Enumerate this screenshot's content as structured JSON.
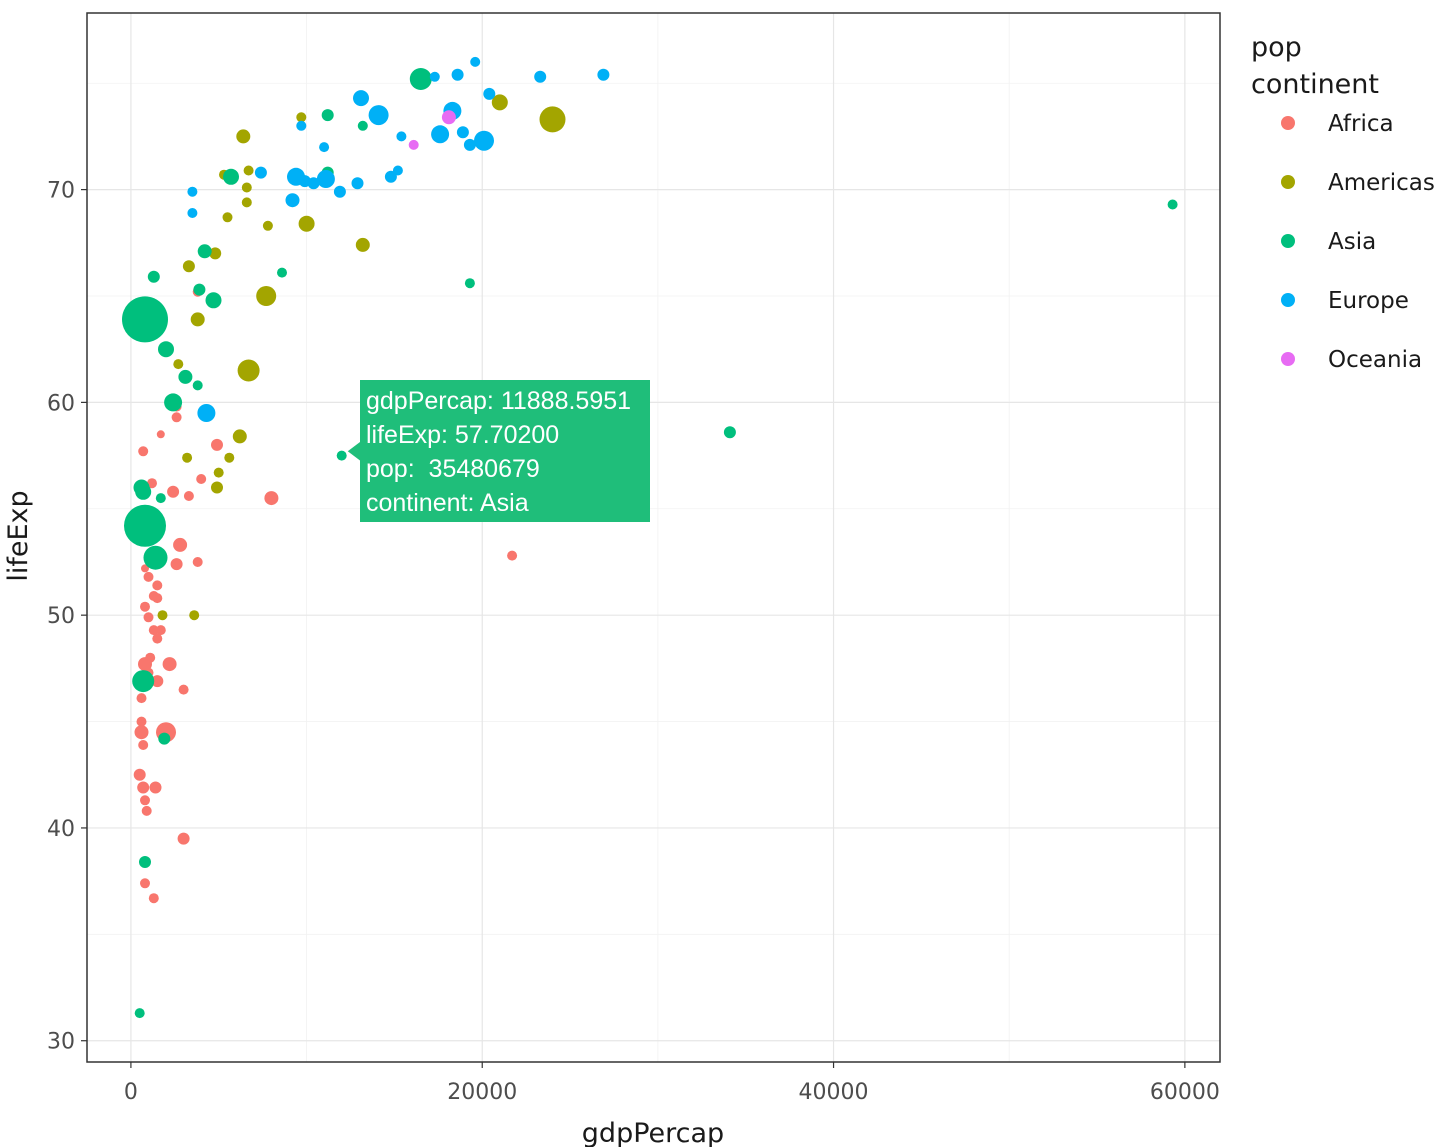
{
  "chart_data": {
    "type": "scatter",
    "xlabel": "gdpPercap",
    "ylabel": "lifeExp",
    "xlim": [
      -2500,
      62000
    ],
    "ylim": [
      29,
      78.3
    ],
    "x_ticks": [
      0,
      20000,
      40000,
      60000
    ],
    "y_ticks": [
      30,
      40,
      50,
      60,
      70
    ],
    "x_tick_labels": [
      "0",
      "20000",
      "40000",
      "60000"
    ],
    "y_tick_labels": [
      "30",
      "40",
      "50",
      "60",
      "70"
    ],
    "grid": true,
    "size_variable": "pop",
    "color_variable": "continent",
    "legend": {
      "placement": "right",
      "titles": [
        "pop",
        "continent"
      ],
      "entries": [
        {
          "label": "Africa",
          "color": "#f8766d"
        },
        {
          "label": "Americas",
          "color": "#a3a500"
        },
        {
          "label": "Asia",
          "color": "#00bf7d"
        },
        {
          "label": "Europe",
          "color": "#00b0f6"
        },
        {
          "label": "Oceania",
          "color": "#e76bf3"
        }
      ]
    },
    "tooltip": {
      "lines": [
        "gdpPercap: 11888.5951",
        "lifeExp: 57.70200",
        "pop:  35480679",
        "continent: Asia"
      ],
      "x": 11888.5951,
      "y": 57.702,
      "color": "#1fbe7a"
    },
    "series": [
      {
        "name": "Africa",
        "color": "#f8766d",
        "points": [
          [
            2600,
            59.8,
            5
          ],
          [
            2600,
            59.3,
            5
          ],
          [
            1700,
            58.5,
            4
          ],
          [
            700,
            57.7,
            5
          ],
          [
            4900,
            58.0,
            6
          ],
          [
            1200,
            56.2,
            5
          ],
          [
            2400,
            55.8,
            6
          ],
          [
            3300,
            55.6,
            5
          ],
          [
            4000,
            56.4,
            5
          ],
          [
            8000,
            55.5,
            7
          ],
          [
            2800,
            53.3,
            7
          ],
          [
            2600,
            52.4,
            6
          ],
          [
            3800,
            52.5,
            5
          ],
          [
            800,
            52.2,
            4
          ],
          [
            1000,
            51.8,
            5
          ],
          [
            1500,
            51.4,
            5
          ],
          [
            1300,
            50.9,
            5
          ],
          [
            1500,
            50.8,
            5
          ],
          [
            800,
            50.4,
            5
          ],
          [
            1000,
            49.9,
            5
          ],
          [
            1300,
            49.3,
            5
          ],
          [
            1700,
            49.3,
            5
          ],
          [
            1500,
            48.9,
            5
          ],
          [
            1100,
            48.0,
            5
          ],
          [
            800,
            47.7,
            7
          ],
          [
            2200,
            47.7,
            7
          ],
          [
            1000,
            47.3,
            5
          ],
          [
            1500,
            46.9,
            6
          ],
          [
            600,
            46.1,
            5
          ],
          [
            3000,
            46.5,
            5
          ],
          [
            600,
            45.0,
            5
          ],
          [
            600,
            44.5,
            7
          ],
          [
            2000,
            44.5,
            10
          ],
          [
            700,
            43.9,
            5
          ],
          [
            500,
            42.5,
            6
          ],
          [
            700,
            41.9,
            6
          ],
          [
            1400,
            41.9,
            6
          ],
          [
            800,
            41.3,
            5
          ],
          [
            900,
            40.8,
            5
          ],
          [
            3000,
            39.5,
            6
          ],
          [
            800,
            37.4,
            5
          ],
          [
            1300,
            36.7,
            5
          ],
          [
            21700,
            52.8,
            5
          ],
          [
            3800,
            65.2,
            5
          ]
        ]
      },
      {
        "name": "Americas",
        "color": "#a3a500",
        "points": [
          [
            24000,
            73.3,
            13
          ],
          [
            21000,
            74.1,
            8
          ],
          [
            9700,
            73.4,
            5
          ],
          [
            6400,
            72.5,
            7
          ],
          [
            6700,
            70.9,
            5
          ],
          [
            5300,
            70.7,
            5
          ],
          [
            6600,
            70.1,
            5
          ],
          [
            6600,
            69.4,
            5
          ],
          [
            5500,
            68.7,
            5
          ],
          [
            7800,
            68.3,
            5
          ],
          [
            10000,
            68.4,
            8
          ],
          [
            13200,
            67.4,
            7
          ],
          [
            4800,
            67.0,
            6
          ],
          [
            3300,
            66.4,
            6
          ],
          [
            7700,
            65.0,
            10
          ],
          [
            3800,
            63.9,
            7
          ],
          [
            6700,
            61.5,
            11
          ],
          [
            2700,
            61.8,
            5
          ],
          [
            6200,
            58.4,
            7
          ],
          [
            5600,
            57.4,
            5
          ],
          [
            3200,
            57.4,
            5
          ],
          [
            5000,
            56.7,
            5
          ],
          [
            4900,
            56.0,
            6
          ],
          [
            1800,
            50.0,
            5
          ],
          [
            3600,
            50.0,
            5
          ]
        ]
      },
      {
        "name": "Asia",
        "color": "#00bf7d",
        "points": [
          [
            16500,
            75.2,
            11
          ],
          [
            11200,
            73.5,
            6
          ],
          [
            13200,
            73.0,
            5
          ],
          [
            11200,
            70.8,
            6
          ],
          [
            5700,
            70.6,
            8
          ],
          [
            4200,
            67.1,
            7
          ],
          [
            8600,
            66.1,
            5
          ],
          [
            1300,
            65.9,
            6
          ],
          [
            3900,
            65.3,
            6
          ],
          [
            4700,
            64.8,
            8
          ],
          [
            800,
            63.9,
            23
          ],
          [
            19300,
            65.6,
            5
          ],
          [
            2000,
            62.5,
            8
          ],
          [
            3100,
            61.2,
            7
          ],
          [
            3800,
            60.8,
            5
          ],
          [
            2400,
            60.0,
            9
          ],
          [
            1700,
            55.5,
            5
          ],
          [
            600,
            56.0,
            8
          ],
          [
            700,
            55.8,
            8
          ],
          [
            800,
            54.2,
            21
          ],
          [
            1400,
            52.7,
            12
          ],
          [
            12000,
            57.5,
            5
          ],
          [
            34100,
            58.6,
            6
          ],
          [
            59300,
            69.3,
            5
          ],
          [
            700,
            46.9,
            11
          ],
          [
            1900,
            44.2,
            6
          ],
          [
            800,
            38.4,
            6
          ],
          [
            500,
            31.3,
            5
          ]
        ]
      },
      {
        "name": "Europe",
        "color": "#00b0f6",
        "points": [
          [
            19600,
            76.0,
            5
          ],
          [
            18600,
            75.4,
            6
          ],
          [
            17300,
            75.3,
            5
          ],
          [
            23300,
            75.3,
            6
          ],
          [
            26900,
            75.4,
            6
          ],
          [
            20400,
            74.5,
            6
          ],
          [
            13100,
            74.3,
            8
          ],
          [
            18300,
            73.7,
            9
          ],
          [
            14100,
            73.5,
            10
          ],
          [
            9700,
            73.0,
            5
          ],
          [
            15400,
            72.5,
            5
          ],
          [
            17600,
            72.6,
            9
          ],
          [
            18900,
            72.7,
            6
          ],
          [
            19300,
            72.1,
            6
          ],
          [
            20100,
            72.3,
            10
          ],
          [
            11000,
            72.0,
            5
          ],
          [
            3500,
            69.9,
            5
          ],
          [
            3500,
            68.9,
            5
          ],
          [
            7400,
            70.8,
            6
          ],
          [
            9400,
            70.6,
            9
          ],
          [
            9900,
            70.4,
            6
          ],
          [
            11100,
            70.5,
            9
          ],
          [
            10400,
            70.3,
            6
          ],
          [
            15200,
            70.9,
            5
          ],
          [
            14800,
            70.6,
            6
          ],
          [
            12900,
            70.3,
            6
          ],
          [
            11900,
            69.9,
            6
          ],
          [
            9200,
            69.5,
            7
          ],
          [
            4300,
            59.5,
            9
          ]
        ]
      },
      {
        "name": "Oceania",
        "color": "#e76bf3",
        "points": [
          [
            16100,
            72.1,
            5
          ],
          [
            18100,
            73.4,
            7
          ]
        ]
      }
    ]
  }
}
